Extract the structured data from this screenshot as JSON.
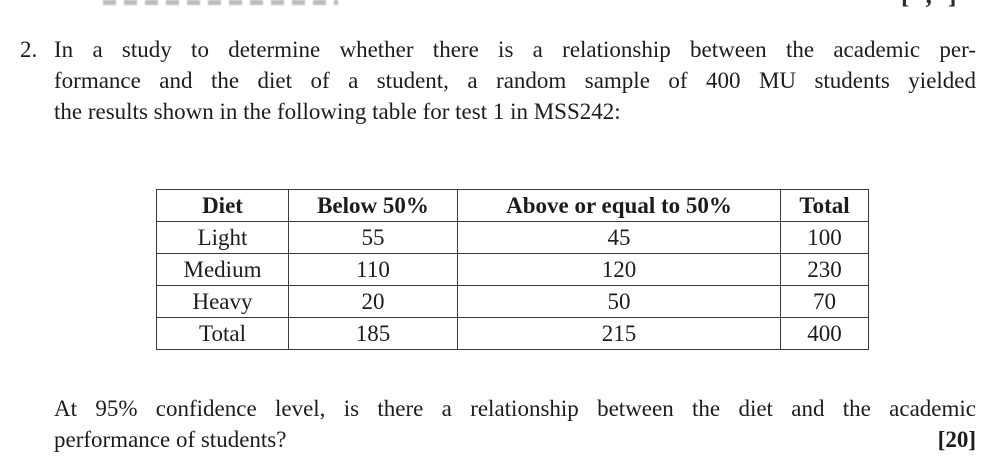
{
  "page": {
    "background": "#ffffff",
    "text_color": "#1c1c1c"
  },
  "top_clipped": {
    "marks_fragment": "[ , ]"
  },
  "question": {
    "number": "2.",
    "lines": [
      "In a study to determine whether there is a relationship between the academic per-",
      "formance and the diet of a student, a random sample of 400 MU students yielded",
      "the results shown in the following table for test 1 in MSS242:"
    ]
  },
  "table": {
    "headers": [
      "Diet",
      "Below 50%",
      "Above or equal to 50%",
      "Total"
    ],
    "rows": [
      {
        "label": "Light",
        "cells": [
          "55",
          "45",
          "100"
        ]
      },
      {
        "label": "Medium",
        "cells": [
          "110",
          "120",
          "230"
        ]
      },
      {
        "label": "Heavy",
        "cells": [
          "20",
          "50",
          "70"
        ]
      },
      {
        "label": "Total",
        "cells": [
          "185",
          "215",
          "400"
        ]
      }
    ]
  },
  "closing": {
    "line1": "At 95% confidence level, is there a relationship between the diet and the academic",
    "line2": "performance of students?",
    "marks": "[20]"
  }
}
